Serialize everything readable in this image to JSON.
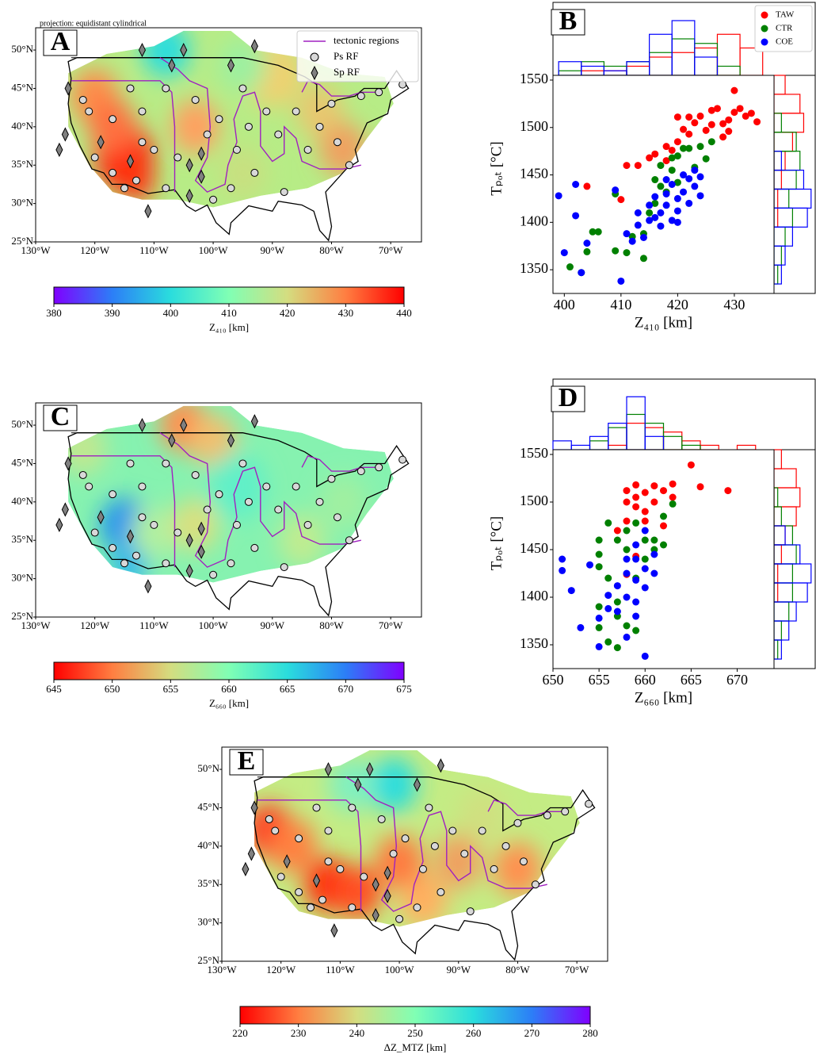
{
  "chart_data": [
    {
      "type": "map",
      "panel": "A",
      "projection_note": "projection: equidistant cylindrical",
      "legend": [
        "tectonic regions",
        "Ps RF",
        "Sp RF"
      ],
      "xlim": [
        -130,
        -64.8
      ],
      "ylim": [
        25,
        52.9
      ],
      "xticks": [
        {
          "value": -130,
          "label": "130°W"
        },
        {
          "value": -120,
          "label": "120°W"
        },
        {
          "value": -110,
          "label": "110°W"
        },
        {
          "value": -100,
          "label": "100°W"
        },
        {
          "value": -90,
          "label": "90°W"
        },
        {
          "value": -80,
          "label": "80°W"
        },
        {
          "value": -70,
          "label": "70°W"
        }
      ],
      "yticks": [
        {
          "value": 25,
          "label": "25°N"
        },
        {
          "value": 30,
          "label": "30°N"
        },
        {
          "value": 35,
          "label": "35°N"
        },
        {
          "value": 40,
          "label": "40°N"
        },
        {
          "value": 45,
          "label": "45°N"
        },
        {
          "value": 50,
          "label": "50°N"
        }
      ],
      "colorbar": {
        "label": "Z₄₁₀ [km]",
        "lim": [
          380,
          440
        ],
        "ticks": [
          380,
          390,
          400,
          410,
          420,
          430,
          440
        ],
        "colormap": [
          "#8000ff",
          "#2c7ef7",
          "#2adddd",
          "#80ffb4",
          "#d4dd80",
          "#ff7e41",
          "#ff0000"
        ]
      }
    },
    {
      "type": "scatter",
      "panel": "B",
      "xlabel": "Z₄₁₀ [km]",
      "ylabel": "Tₚₒₜ [°C]",
      "xlim": [
        398,
        437
      ],
      "ylim": [
        1325,
        1555
      ],
      "xticks": [
        400,
        410,
        420,
        430
      ],
      "yticks": [
        1350,
        1400,
        1450,
        1500,
        1550
      ],
      "series": [
        {
          "name": "TAW",
          "color": "#ff0000",
          "x": [
            404,
            410,
            411,
            413,
            415,
            416,
            418,
            419,
            420,
            421,
            420,
            422,
            423,
            424,
            425,
            426,
            426,
            428,
            428,
            429,
            429,
            430,
            430,
            431,
            432,
            433,
            434,
            427,
            418,
            422
          ],
          "values": [
            1438,
            1424,
            1460,
            1460,
            1468,
            1472,
            1480,
            1476,
            1485,
            1498,
            1511,
            1511,
            1505,
            1512,
            1497,
            1503,
            1518,
            1504,
            1490,
            1496,
            1508,
            1516,
            1539,
            1520,
            1512,
            1515,
            1506,
            1520,
            1465,
            1493
          ]
        },
        {
          "name": "CTR",
          "color": "#008000",
          "x": [
            401,
            403,
            404,
            405,
            406,
            409,
            409,
            411,
            412,
            414,
            414,
            415,
            416,
            416,
            417,
            418,
            419,
            420,
            420,
            421,
            422,
            423,
            424,
            425,
            426,
            419,
            417
          ],
          "values": [
            1353,
            1347,
            1369,
            1390,
            1390,
            1370,
            1430,
            1368,
            1385,
            1362,
            1388,
            1410,
            1445,
            1420,
            1460,
            1432,
            1455,
            1442,
            1470,
            1478,
            1478,
            1458,
            1480,
            1467,
            1485,
            1468,
            1438
          ]
        },
        {
          "name": "COE",
          "color": "#0000ff",
          "x": [
            399,
            400,
            402,
            402,
            403,
            404,
            409,
            410,
            411,
            412,
            413,
            413,
            414,
            415,
            415,
            416,
            416,
            417,
            417,
            418,
            418,
            419,
            419,
            420,
            420,
            421,
            421,
            422,
            422,
            423,
            423,
            424,
            424,
            418,
            420
          ],
          "values": [
            1428,
            1368,
            1407,
            1440,
            1347,
            1378,
            1434,
            1338,
            1388,
            1380,
            1397,
            1410,
            1384,
            1402,
            1418,
            1405,
            1427,
            1396,
            1410,
            1418,
            1430,
            1402,
            1440,
            1425,
            1412,
            1450,
            1432,
            1446,
            1420,
            1455,
            1438,
            1428,
            1448,
            1445,
            1400
          ]
        }
      ],
      "hist_x": {
        "bins": [
          399,
          403,
          407,
          411,
          415,
          419,
          423,
          427,
          431,
          435
        ],
        "counts": [
          [
            0,
            1,
            1,
            2,
            4,
            5,
            6,
            9,
            6
          ],
          [
            1,
            3,
            2,
            3,
            5,
            8,
            7,
            2,
            0
          ],
          [
            3,
            2,
            1,
            3,
            9,
            12,
            4,
            0,
            0
          ]
        ]
      },
      "hist_y": {
        "bins": [
          1335,
          1355,
          1375,
          1395,
          1415,
          1435,
          1455,
          1475,
          1495,
          1515,
          1535,
          1555
        ],
        "counts": [
          [
            0,
            0,
            0,
            1,
            1,
            2,
            3,
            5,
            8,
            7,
            3
          ],
          [
            1,
            2,
            3,
            5,
            4,
            6,
            7,
            6,
            2,
            0,
            0
          ],
          [
            2,
            3,
            5,
            9,
            10,
            8,
            2,
            0,
            0,
            0,
            0
          ]
        ]
      }
    },
    {
      "type": "map",
      "panel": "C",
      "xlim": [
        -130,
        -64.8
      ],
      "ylim": [
        25,
        52.9
      ],
      "xticks": [
        {
          "value": -130,
          "label": "130°W"
        },
        {
          "value": -120,
          "label": "120°W"
        },
        {
          "value": -110,
          "label": "110°W"
        },
        {
          "value": -100,
          "label": "100°W"
        },
        {
          "value": -90,
          "label": "90°W"
        },
        {
          "value": -80,
          "label": "80°W"
        },
        {
          "value": -70,
          "label": "70°W"
        }
      ],
      "yticks": [
        {
          "value": 25,
          "label": "25°N"
        },
        {
          "value": 30,
          "label": "30°N"
        },
        {
          "value": 35,
          "label": "35°N"
        },
        {
          "value": 40,
          "label": "40°N"
        },
        {
          "value": 45,
          "label": "45°N"
        },
        {
          "value": 50,
          "label": "50°N"
        }
      ],
      "colorbar": {
        "label": "Z₆₆₀ [km]",
        "lim": [
          645,
          675
        ],
        "ticks": [
          645,
          650,
          655,
          660,
          665,
          670,
          675
        ],
        "colormap": [
          "#ff0000",
          "#ff7e41",
          "#d4dd80",
          "#80ffb4",
          "#2adddd",
          "#2c7ef7",
          "#8000ff"
        ]
      }
    },
    {
      "type": "scatter",
      "panel": "D",
      "xlabel": "Z₆₆₀ [km]",
      "ylabel": "Tₚₒₜ [°C]",
      "xlim": [
        650,
        674
      ],
      "ylim": [
        1325,
        1555
      ],
      "xticks": [
        650,
        655,
        660,
        665,
        670
      ],
      "yticks": [
        1350,
        1400,
        1450,
        1500,
        1550
      ],
      "series": [
        {
          "color": "#ff0000",
          "x": [
            658,
            659,
            657,
            658,
            658,
            658,
            659,
            659,
            659,
            660,
            660,
            661,
            661,
            662,
            662,
            663,
            663,
            665,
            666,
            669,
            660
          ],
          "values": [
            1424,
            1443,
            1470,
            1480,
            1500,
            1512,
            1495,
            1505,
            1518,
            1490,
            1510,
            1500,
            1517,
            1512,
            1475,
            1519,
            1505,
            1539,
            1516,
            1512,
            1480
          ]
        },
        {
          "color": "#008000",
          "x": [
            656,
            657,
            655,
            655,
            655,
            655,
            655,
            656,
            656,
            657,
            657,
            657,
            658,
            658,
            658,
            659,
            659,
            660,
            660,
            661,
            661,
            662,
            662,
            663,
            659
          ],
          "values": [
            1353,
            1347,
            1368,
            1390,
            1432,
            1445,
            1460,
            1420,
            1478,
            1460,
            1395,
            1380,
            1470,
            1450,
            1370,
            1478,
            1420,
            1460,
            1440,
            1460,
            1450,
            1485,
            1455,
            1498,
            1365
          ]
        },
        {
          "color": "#0000ff",
          "x": [
            651,
            651,
            652,
            653,
            654,
            655,
            655,
            656,
            656,
            657,
            657,
            658,
            658,
            658,
            659,
            659,
            659,
            659,
            660,
            660,
            660,
            660,
            661,
            661,
            659,
            658
          ],
          "values": [
            1440,
            1428,
            1407,
            1368,
            1434,
            1378,
            1348,
            1388,
            1402,
            1412,
            1385,
            1425,
            1400,
            1358,
            1418,
            1440,
            1455,
            1395,
            1430,
            1410,
            1338,
            1470,
            1445,
            1425,
            1380,
            1440
          ]
        }
      ],
      "hist_x": {
        "bins": [
          650,
          652,
          654,
          656,
          658,
          660,
          662,
          664,
          666,
          668,
          670,
          672
        ],
        "counts": [
          [
            0,
            0,
            0,
            1,
            6,
            5,
            4,
            2,
            1,
            0,
            1
          ],
          [
            0,
            0,
            2,
            5,
            8,
            6,
            3,
            1,
            0,
            0,
            0
          ],
          [
            2,
            1,
            3,
            6,
            12,
            3,
            0,
            0,
            0,
            0,
            0
          ]
        ]
      },
      "hist_y": {
        "bins": [
          1335,
          1355,
          1375,
          1395,
          1415,
          1435,
          1455,
          1475,
          1495,
          1515,
          1535,
          1555
        ],
        "counts": [
          [
            0,
            0,
            0,
            1,
            1,
            2,
            3,
            6,
            7,
            6,
            2
          ],
          [
            1,
            2,
            4,
            5,
            5,
            6,
            5,
            2,
            1,
            0,
            0
          ],
          [
            2,
            4,
            6,
            9,
            10,
            7,
            3,
            0,
            0,
            0,
            0
          ]
        ]
      }
    },
    {
      "type": "map",
      "panel": "E",
      "xlim": [
        -130,
        -64.8
      ],
      "ylim": [
        25,
        52.9
      ],
      "xticks": [
        {
          "value": -130,
          "label": "130°W"
        },
        {
          "value": -120,
          "label": "120°W"
        },
        {
          "value": -110,
          "label": "110°W"
        },
        {
          "value": -100,
          "label": "100°W"
        },
        {
          "value": -90,
          "label": "90°W"
        },
        {
          "value": -80,
          "label": "80°W"
        },
        {
          "value": -70,
          "label": "70°W"
        }
      ],
      "yticks": [
        {
          "value": 25,
          "label": "25°N"
        },
        {
          "value": 30,
          "label": "30°N"
        },
        {
          "value": 35,
          "label": "35°N"
        },
        {
          "value": 40,
          "label": "40°N"
        },
        {
          "value": 45,
          "label": "45°N"
        },
        {
          "value": 50,
          "label": "50°N"
        }
      ],
      "colorbar": {
        "label": "ΔZ_MTZ [km]",
        "lim": [
          220,
          280
        ],
        "ticks": [
          220,
          230,
          240,
          250,
          260,
          270,
          280
        ],
        "colormap": [
          "#ff0000",
          "#ff7e41",
          "#d4dd80",
          "#80ffb4",
          "#2adddd",
          "#2c7ef7",
          "#8000ff"
        ]
      }
    }
  ]
}
